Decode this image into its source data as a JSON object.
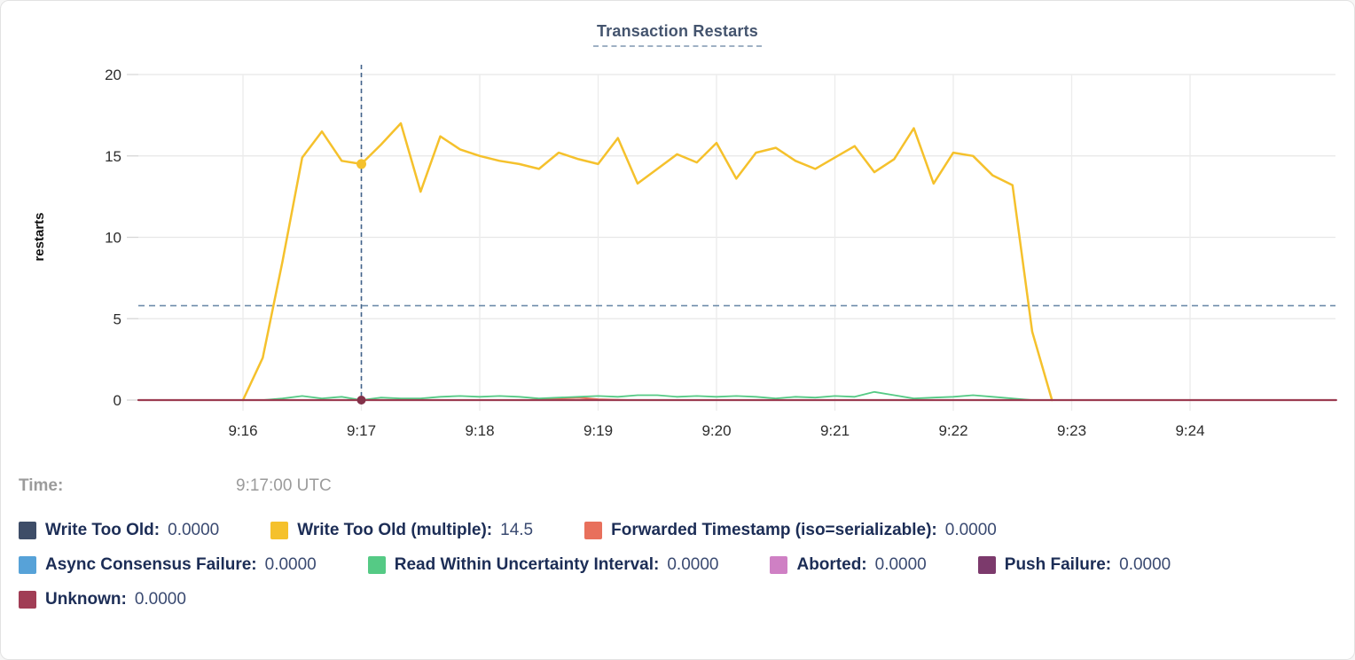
{
  "time_row": {
    "label": "Time:",
    "value": "9:17:00 UTC"
  },
  "legend": {
    "items": [
      {
        "label": "Write Too Old:",
        "value": "0.0000",
        "color": "#3e4d68"
      },
      {
        "label": "Write Too Old (multiple):",
        "value": "14.5",
        "color": "#f5c12c"
      },
      {
        "label": "Forwarded Timestamp (iso=serializable):",
        "value": "0.0000",
        "color": "#e8705c"
      },
      {
        "label": "Async Consensus Failure:",
        "value": "0.0000",
        "color": "#57a2d8"
      },
      {
        "label": "Read Within Uncertainty Interval:",
        "value": "0.0000",
        "color": "#55ca85"
      },
      {
        "label": "Aborted:",
        "value": "0.0000",
        "color": "#cf80c4"
      },
      {
        "label": "Push Failure:",
        "value": "0.0000",
        "color": "#7c3a6c"
      },
      {
        "label": "Unknown:",
        "value": "0.0000",
        "color": "#a13d55"
      }
    ]
  },
  "chart_data": {
    "type": "line",
    "title": "Transaction Restarts",
    "ylabel": "restarts",
    "xlabel": "",
    "ylim": [
      0,
      20
    ],
    "yticks": [
      0,
      5,
      10,
      15,
      20
    ],
    "xtick_labels": [
      "9:16",
      "9:17",
      "9:18",
      "9:19",
      "9:20",
      "9:21",
      "9:22",
      "9:23",
      "9:24"
    ],
    "xtick_start_offset_s": 0,
    "xtick_step_s": 60,
    "x_domain_s": [
      -53,
      554
    ],
    "grid": true,
    "legend_position": "below",
    "sample_step_s": 10,
    "crosshair": {
      "time": "9:17:00 UTC",
      "x_offset_s": 60,
      "hline_value": 5.8
    },
    "series": [
      {
        "name": "Write Too Old",
        "color": "#3e4d68",
        "width": 2,
        "points": [
          [
            -53,
            0
          ],
          [
            554,
            0
          ]
        ]
      },
      {
        "name": "Async Consensus Failure",
        "color": "#57a2d8",
        "width": 2,
        "points": [
          [
            -53,
            0
          ],
          [
            554,
            0
          ]
        ]
      },
      {
        "name": "Aborted",
        "color": "#cf80c4",
        "width": 2,
        "points": [
          [
            -53,
            0
          ],
          [
            554,
            0
          ]
        ]
      },
      {
        "name": "Push Failure",
        "color": "#7c3a6c",
        "width": 2,
        "points": [
          [
            -53,
            0
          ],
          [
            554,
            0
          ]
        ]
      },
      {
        "name": "Forwarded Timestamp (iso=serializable)",
        "color": "#e8705c",
        "width": 2,
        "points": [
          [
            -53,
            0
          ],
          [
            145,
            0
          ],
          [
            160,
            0.1
          ],
          [
            170,
            0.15
          ],
          [
            180,
            0.05
          ],
          [
            195,
            0
          ],
          [
            554,
            0
          ]
        ]
      },
      {
        "name": "Read Within Uncertainty Interval",
        "color": "#55ca85",
        "width": 1.8,
        "start_offset_s": 0,
        "values": [
          0,
          0,
          0.1,
          0.25,
          0.1,
          0.2,
          0,
          0.15,
          0.1,
          0.1,
          0.2,
          0.25,
          0.2,
          0.25,
          0.2,
          0.1,
          0.15,
          0.2,
          0.25,
          0.2,
          0.3,
          0.3,
          0.2,
          0.25,
          0.2,
          0.25,
          0.2,
          0.1,
          0.2,
          0.15,
          0.25,
          0.2,
          0.5,
          0.3,
          0.1,
          0.15,
          0.2,
          0.3,
          0.2,
          0.1,
          0,
          0
        ]
      },
      {
        "name": "Write Too Old (multiple)",
        "color": "#f5c12c",
        "width": 2.5,
        "start_offset_s": 0,
        "values": [
          0,
          2.6,
          8.5,
          14.9,
          16.5,
          14.7,
          14.5,
          15.7,
          17.0,
          12.8,
          16.2,
          15.4,
          15.0,
          14.7,
          14.5,
          14.2,
          15.2,
          14.8,
          14.5,
          16.1,
          13.3,
          14.2,
          15.1,
          14.6,
          15.8,
          13.6,
          15.2,
          15.5,
          14.7,
          14.2,
          14.9,
          15.6,
          14.0,
          14.8,
          16.7,
          13.3,
          15.2,
          15.0,
          13.8,
          13.2,
          4.2,
          0
        ]
      },
      {
        "name": "Unknown",
        "color": "#9c3c51",
        "width": 2.2,
        "points": [
          [
            -53,
            0
          ],
          [
            554,
            0
          ]
        ]
      }
    ],
    "markers": [
      {
        "series": "Write Too Old (multiple)",
        "offset_s": 60,
        "value": 14.5,
        "color": "#f5c12c",
        "r": 5.5
      },
      {
        "series": "Unknown",
        "offset_s": 60,
        "value": 0,
        "color": "#833149",
        "r": 5
      }
    ]
  }
}
